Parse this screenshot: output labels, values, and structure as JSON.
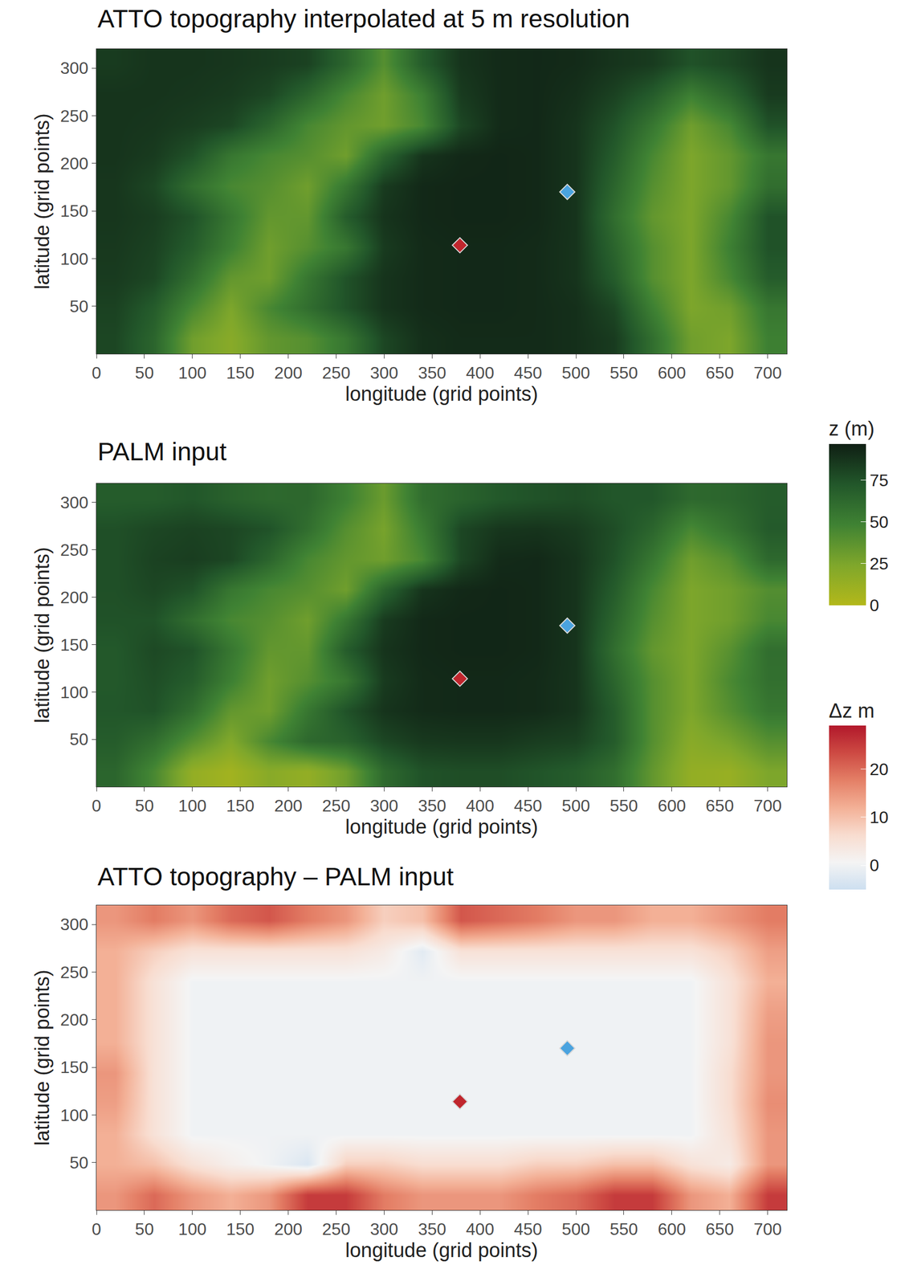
{
  "chart_data": {
    "colorbars": [
      {
        "title": "z (m)",
        "range": [
          0,
          97
        ],
        "ticks": [
          0,
          25,
          50,
          75
        ],
        "colors": [
          "#b3b81a",
          "#7fa72b",
          "#3f8233",
          "#22572a",
          "#0f1f14"
        ]
      },
      {
        "title": "Δz m",
        "range": [
          -5,
          29
        ],
        "ticks": [
          0,
          10,
          20
        ],
        "colors": [
          "#cddff0",
          "#f4f4f4",
          "#f8dccf",
          "#f3b096",
          "#e47f66",
          "#cd4a43",
          "#b2182b"
        ]
      }
    ],
    "panels": [
      {
        "type": "heatmap",
        "title": "ATTO topography interpolated at 5 m resolution",
        "x_label": "longitude (grid points)",
        "y_label": "latitude (grid points)",
        "xlim": [
          0,
          720
        ],
        "ylim": [
          0,
          320
        ],
        "xticks": [
          0,
          50,
          100,
          150,
          200,
          250,
          300,
          350,
          400,
          450,
          500,
          550,
          600,
          650,
          700
        ],
        "yticks": [
          50,
          100,
          150,
          200,
          250,
          300
        ],
        "grid": false,
        "colorbar": 0,
        "marker": "diamond",
        "points": [
          {
            "x": 379,
            "y": 114,
            "color": "#c0262d"
          },
          {
            "x": 491,
            "y": 170,
            "color": "#4aa3df"
          }
        ],
        "x": [
          20,
          60,
          100,
          140,
          180,
          220,
          260,
          300,
          340,
          380,
          420,
          460,
          500,
          540,
          580,
          620,
          660,
          700
        ],
        "y": [
          16,
          48,
          80,
          112,
          144,
          176,
          208,
          240,
          272,
          304
        ],
        "z": [
          [
            80,
            65,
            30,
            20,
            35,
            40,
            55,
            80,
            90,
            92,
            92,
            92,
            90,
            85,
            60,
            30,
            25,
            50
          ],
          [
            82,
            70,
            45,
            25,
            45,
            60,
            75,
            88,
            92,
            93,
            93,
            92,
            90,
            80,
            50,
            25,
            30,
            55
          ],
          [
            85,
            80,
            60,
            35,
            30,
            55,
            75,
            88,
            92,
            93,
            93,
            92,
            88,
            70,
            40,
            25,
            45,
            70
          ],
          [
            86,
            82,
            70,
            50,
            30,
            40,
            55,
            85,
            92,
            93,
            93,
            92,
            88,
            65,
            40,
            25,
            50,
            75
          ],
          [
            87,
            84,
            75,
            55,
            35,
            35,
            70,
            88,
            93,
            94,
            94,
            93,
            88,
            60,
            35,
            25,
            45,
            75
          ],
          [
            87,
            80,
            60,
            45,
            40,
            30,
            55,
            85,
            93,
            94,
            94,
            93,
            88,
            65,
            40,
            25,
            35,
            60
          ],
          [
            88,
            85,
            75,
            55,
            45,
            40,
            30,
            65,
            88,
            93,
            94,
            93,
            88,
            70,
            45,
            25,
            35,
            55
          ],
          [
            88,
            87,
            84,
            80,
            65,
            45,
            35,
            30,
            45,
            80,
            92,
            93,
            88,
            75,
            55,
            30,
            45,
            75
          ],
          [
            88,
            88,
            87,
            85,
            80,
            65,
            45,
            30,
            50,
            85,
            92,
            93,
            90,
            82,
            70,
            50,
            65,
            85
          ],
          [
            85,
            88,
            88,
            87,
            85,
            82,
            65,
            40,
            70,
            88,
            92,
            93,
            92,
            88,
            85,
            75,
            80,
            88
          ]
        ]
      },
      {
        "type": "heatmap",
        "title": "PALM input",
        "x_label": "longitude (grid points)",
        "y_label": "latitude (grid points)",
        "xlim": [
          0,
          720
        ],
        "ylim": [
          0,
          320
        ],
        "xticks": [
          0,
          50,
          100,
          150,
          200,
          250,
          300,
          350,
          400,
          450,
          500,
          550,
          600,
          650,
          700
        ],
        "yticks": [
          50,
          100,
          150,
          200,
          250,
          300
        ],
        "grid": false,
        "colorbar": 0,
        "marker": "diamond",
        "points": [
          {
            "x": 379,
            "y": 114,
            "color": "#c0262d"
          },
          {
            "x": 491,
            "y": 170,
            "color": "#4aa3df"
          }
        ],
        "x": [
          20,
          60,
          100,
          140,
          180,
          220,
          260,
          300,
          340,
          380,
          420,
          460,
          500,
          540,
          580,
          620,
          660,
          700
        ],
        "y": [
          16,
          48,
          80,
          112,
          144,
          176,
          208,
          240,
          272,
          304
        ],
        "z": [
          [
            65,
            45,
            15,
            8,
            20,
            15,
            30,
            62,
            75,
            77,
            77,
            74,
            70,
            60,
            35,
            15,
            13,
            25
          ],
          [
            70,
            60,
            40,
            23,
            45,
            63,
            67,
            80,
            86,
            87,
            87,
            84,
            82,
            70,
            40,
            20,
            27,
            40
          ],
          [
            73,
            75,
            60,
            35,
            30,
            55,
            75,
            88,
            92,
            93,
            93,
            92,
            88,
            70,
            40,
            25,
            40,
            55
          ],
          [
            72,
            77,
            70,
            50,
            30,
            40,
            55,
            85,
            92,
            93,
            93,
            92,
            88,
            65,
            40,
            25,
            44,
            59
          ],
          [
            72,
            79,
            75,
            55,
            35,
            35,
            70,
            88,
            93,
            94,
            94,
            93,
            88,
            60,
            35,
            25,
            39,
            60
          ],
          [
            75,
            75,
            60,
            45,
            40,
            30,
            55,
            85,
            93,
            94,
            94,
            93,
            88,
            65,
            40,
            25,
            30,
            45
          ],
          [
            76,
            80,
            75,
            55,
            45,
            40,
            30,
            65,
            88,
            93,
            94,
            93,
            88,
            70,
            45,
            25,
            30,
            41
          ],
          [
            76,
            82,
            84,
            80,
            65,
            45,
            35,
            30,
            45,
            80,
            92,
            93,
            88,
            75,
            55,
            30,
            40,
            63
          ],
          [
            76,
            80,
            82,
            80,
            75,
            60,
            40,
            27,
            52,
            80,
            87,
            88,
            85,
            77,
            65,
            45,
            57,
            71
          ],
          [
            70,
            70,
            73,
            67,
            63,
            64,
            50,
            32,
            60,
            66,
            72,
            75,
            77,
            73,
            73,
            63,
            65,
            70
          ]
        ]
      },
      {
        "type": "heatmap",
        "title": "ATTO topography – PALM input",
        "x_label": "longitude (grid points)",
        "y_label": "latitude (grid points)",
        "xlim": [
          0,
          720
        ],
        "ylim": [
          0,
          320
        ],
        "xticks": [
          0,
          50,
          100,
          150,
          200,
          250,
          300,
          350,
          400,
          450,
          500,
          550,
          600,
          650,
          700
        ],
        "yticks": [
          50,
          100,
          150,
          200,
          250,
          300
        ],
        "grid": false,
        "colorbar": 1,
        "marker": "diamond",
        "points": [
          {
            "x": 379,
            "y": 114,
            "color": "#c0262d"
          },
          {
            "x": 491,
            "y": 170,
            "color": "#4aa3df"
          }
        ],
        "x": [
          20,
          60,
          100,
          140,
          180,
          220,
          260,
          300,
          340,
          380,
          420,
          460,
          500,
          540,
          580,
          620,
          660,
          700
        ],
        "y": [
          16,
          48,
          80,
          112,
          144,
          176,
          208,
          240,
          272,
          304
        ],
        "z": [
          [
            15,
            20,
            15,
            12,
            15,
            25,
            25,
            18,
            15,
            15,
            15,
            18,
            20,
            25,
            25,
            15,
            12,
            25
          ],
          [
            12,
            10,
            5,
            2,
            0,
            -3,
            8,
            8,
            6,
            6,
            6,
            8,
            8,
            10,
            10,
            5,
            3,
            15
          ],
          [
            12,
            5,
            0,
            0,
            0,
            0,
            0,
            0,
            0,
            0,
            0,
            0,
            0,
            0,
            0,
            0,
            5,
            15
          ],
          [
            14,
            5,
            0,
            0,
            0,
            0,
            0,
            0,
            0,
            0,
            0,
            0,
            0,
            0,
            0,
            0,
            6,
            16
          ],
          [
            15,
            5,
            0,
            0,
            0,
            0,
            0,
            0,
            0,
            0,
            0,
            0,
            0,
            0,
            0,
            0,
            6,
            15
          ],
          [
            12,
            5,
            0,
            0,
            0,
            0,
            0,
            0,
            0,
            0,
            0,
            0,
            0,
            0,
            0,
            0,
            5,
            15
          ],
          [
            12,
            5,
            0,
            0,
            0,
            0,
            0,
            0,
            0,
            0,
            0,
            0,
            0,
            0,
            0,
            0,
            5,
            14
          ],
          [
            12,
            5,
            0,
            0,
            0,
            0,
            0,
            0,
            0,
            0,
            0,
            0,
            0,
            0,
            0,
            0,
            5,
            12
          ],
          [
            12,
            8,
            5,
            5,
            5,
            5,
            5,
            3,
            -2,
            5,
            5,
            5,
            5,
            5,
            5,
            5,
            8,
            14
          ],
          [
            15,
            18,
            15,
            20,
            22,
            18,
            15,
            8,
            10,
            22,
            20,
            18,
            15,
            15,
            12,
            12,
            15,
            18
          ]
        ]
      }
    ]
  }
}
